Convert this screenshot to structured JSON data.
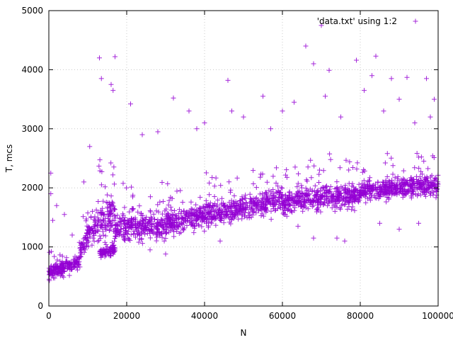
{
  "chart_data": {
    "type": "scatter",
    "title": "",
    "xlabel": "N",
    "ylabel": "T, mcs",
    "xlim": [
      0,
      100000
    ],
    "ylim": [
      0,
      5000
    ],
    "xticks": [
      "0",
      "20000",
      "40000",
      "60000",
      "80000",
      "100000"
    ],
    "yticks": [
      "0",
      "1000",
      "2000",
      "3000",
      "4000",
      "5000"
    ],
    "grid": true,
    "legend_position": "top-right",
    "marker": "plus",
    "series": [
      {
        "name": "'data.txt' using 1:2",
        "color": "#9400d3",
        "regimes": [
          {
            "x_from": 0,
            "x_to": 8000,
            "y_center_from": 550,
            "y_center_to": 750,
            "spread": 180
          },
          {
            "x_from": 8000,
            "x_to": 11000,
            "y_center_from": 900,
            "y_center_to": 1350,
            "spread": 250
          },
          {
            "x_from": 11000,
            "x_to": 17000,
            "y_center_from": 1300,
            "y_center_to": 1550,
            "spread": 450
          },
          {
            "x_from": 13000,
            "x_to": 17000,
            "y_center_from": 900,
            "y_center_to": 950,
            "spread": 120
          },
          {
            "x_from": 17000,
            "x_to": 30000,
            "y_center_from": 1300,
            "y_center_to": 1400,
            "spread": 350
          },
          {
            "x_from": 30000,
            "x_to": 60000,
            "y_center_from": 1400,
            "y_center_to": 1800,
            "spread": 300
          },
          {
            "x_from": 60000,
            "x_to": 80000,
            "y_center_from": 1750,
            "y_center_to": 1900,
            "spread": 300
          },
          {
            "x_from": 80000,
            "x_to": 100000,
            "y_center_from": 1950,
            "y_center_to": 2050,
            "spread": 250
          }
        ],
        "points": [
          [
            13000,
            4200
          ],
          [
            17000,
            4220
          ],
          [
            16000,
            3750
          ],
          [
            16500,
            3650
          ],
          [
            13500,
            3850
          ],
          [
            21000,
            3420
          ],
          [
            32000,
            3520
          ],
          [
            46000,
            3820
          ],
          [
            66000,
            4400
          ],
          [
            68000,
            4100
          ],
          [
            70000,
            4750
          ],
          [
            72000,
            3990
          ],
          [
            79000,
            4160
          ],
          [
            84000,
            4230
          ],
          [
            83000,
            3900
          ],
          [
            88000,
            3850
          ],
          [
            92000,
            3870
          ],
          [
            97000,
            3850
          ],
          [
            99000,
            3500
          ],
          [
            75000,
            3200
          ],
          [
            60000,
            3300
          ],
          [
            55000,
            3550
          ],
          [
            50000,
            3200
          ],
          [
            36000,
            3300
          ],
          [
            40000,
            3100
          ],
          [
            24000,
            2900
          ],
          [
            28000,
            2950
          ],
          [
            9000,
            2100
          ],
          [
            10500,
            2700
          ],
          [
            6000,
            1200
          ],
          [
            2000,
            1700
          ],
          [
            500,
            2250
          ],
          [
            500,
            1900
          ],
          [
            1000,
            1450
          ],
          [
            4000,
            1550
          ],
          [
            26000,
            950
          ],
          [
            30000,
            880
          ],
          [
            44000,
            1100
          ],
          [
            64000,
            1350
          ],
          [
            68000,
            1150
          ],
          [
            74000,
            1150
          ],
          [
            76000,
            1100
          ],
          [
            85000,
            1400
          ],
          [
            90000,
            1300
          ],
          [
            95000,
            1400
          ],
          [
            71000,
            3550
          ],
          [
            81000,
            3650
          ],
          [
            86000,
            3300
          ],
          [
            90000,
            3500
          ],
          [
            94000,
            3100
          ],
          [
            98000,
            3200
          ],
          [
            63000,
            3450
          ],
          [
            57000,
            3000
          ],
          [
            47000,
            3300
          ],
          [
            38000,
            3000
          ]
        ]
      }
    ]
  }
}
